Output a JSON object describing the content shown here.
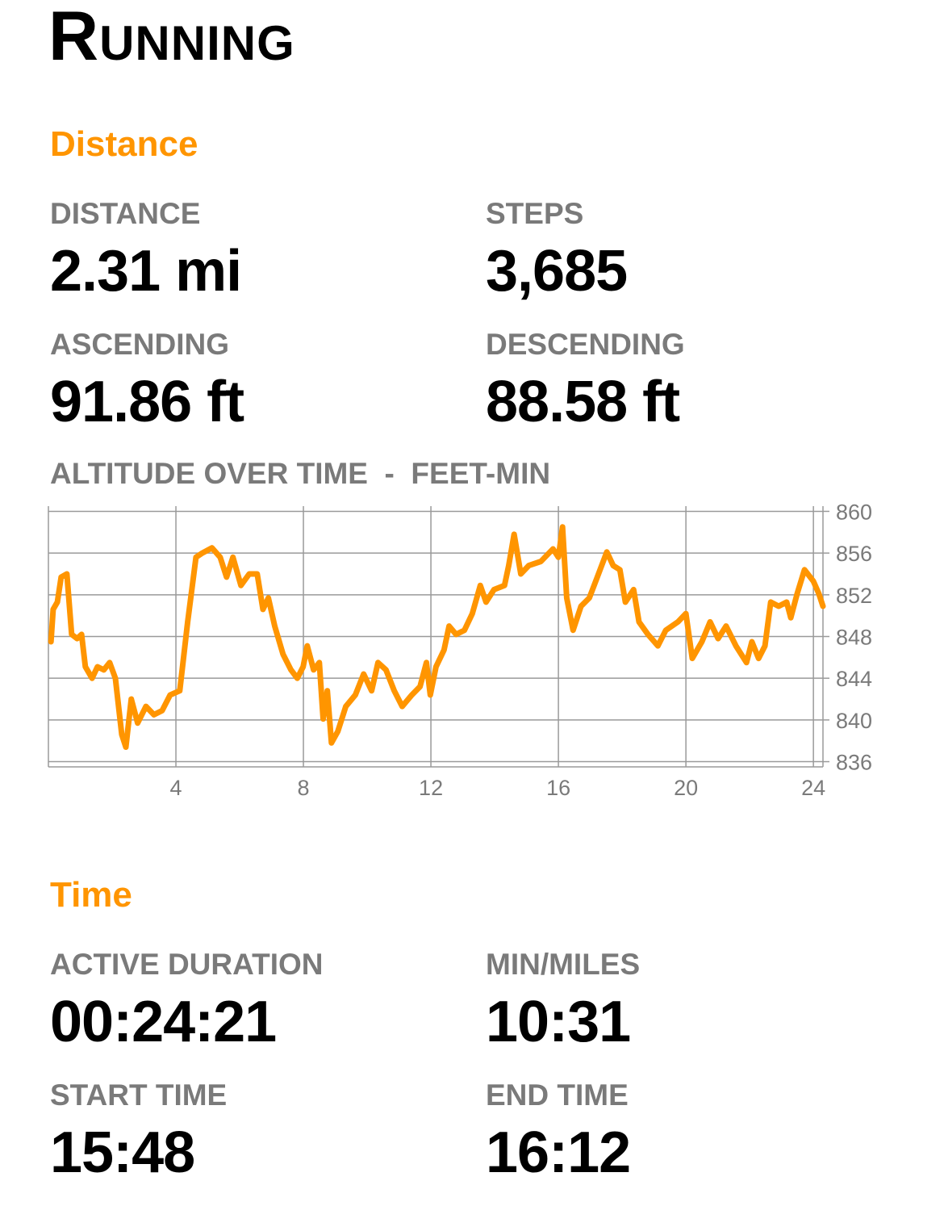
{
  "header": {
    "title": "Running"
  },
  "sections": [
    {
      "heading": "Distance",
      "stats": [
        {
          "label": "DISTANCE",
          "value": "2.31 mi"
        },
        {
          "label": "STEPS",
          "value": "3,685"
        },
        {
          "label": "ASCENDING",
          "value": "91.86 ft"
        },
        {
          "label": "DESCENDING",
          "value": "88.58 ft"
        }
      ]
    },
    {
      "heading": "Time",
      "stats": [
        {
          "label": "ACTIVE DURATION",
          "value": "00:24:21"
        },
        {
          "label": "MIN/MILES",
          "value": "10:31"
        },
        {
          "label": "START TIME",
          "value": "15:48"
        },
        {
          "label": "END TIME",
          "value": "16:12"
        }
      ]
    }
  ],
  "chart_data": {
    "type": "line",
    "title": "ALTITUDE OVER TIME  -  FEET-MIN",
    "x": [
      0.08,
      0.15,
      0.28,
      0.4,
      0.58,
      0.73,
      0.9,
      1.04,
      1.16,
      1.37,
      1.54,
      1.74,
      1.92,
      2.1,
      2.3,
      2.43,
      2.6,
      2.8,
      3.06,
      3.31,
      3.57,
      3.82,
      4.12,
      4.37,
      4.63,
      4.83,
      5.13,
      5.39,
      5.59,
      5.79,
      6.04,
      6.3,
      6.55,
      6.73,
      6.9,
      7.1,
      7.36,
      7.61,
      7.81,
      7.99,
      8.12,
      8.32,
      8.5,
      8.62,
      8.75,
      8.88,
      9.08,
      9.33,
      9.63,
      9.89,
      10.14,
      10.34,
      10.59,
      10.85,
      11.1,
      11.4,
      11.66,
      11.86,
      11.98,
      12.16,
      12.41,
      12.57,
      12.79,
      13.05,
      13.3,
      13.55,
      13.73,
      13.98,
      14.31,
      14.44,
      14.61,
      14.82,
      15.07,
      15.45,
      15.83,
      16.0,
      16.13,
      16.26,
      16.46,
      16.71,
      16.97,
      17.22,
      17.52,
      17.72,
      17.93,
      18.1,
      18.36,
      18.53,
      18.81,
      19.12,
      19.37,
      19.75,
      20.0,
      20.2,
      20.5,
      20.76,
      21.01,
      21.26,
      21.57,
      21.9,
      22.07,
      22.28,
      22.48,
      22.66,
      22.91,
      23.16,
      23.29,
      23.49,
      23.72,
      24.0,
      24.17,
      24.3
    ],
    "series": [
      {
        "color": "#FF9500",
        "values": [
          847.5,
          850.6,
          851.3,
          853.7,
          854.0,
          848.2,
          847.8,
          848.2,
          845.1,
          844.0,
          845.1,
          844.8,
          845.5,
          844.0,
          838.6,
          837.4,
          842.0,
          839.7,
          841.3,
          840.5,
          840.9,
          842.4,
          842.8,
          849.4,
          855.6,
          856.0,
          856.5,
          855.6,
          853.7,
          855.6,
          852.9,
          854.0,
          854.0,
          850.6,
          851.7,
          849.0,
          846.3,
          844.8,
          844.0,
          845.1,
          847.1,
          844.8,
          845.5,
          840.1,
          842.8,
          837.8,
          838.9,
          841.3,
          842.4,
          844.4,
          842.8,
          845.5,
          844.8,
          842.8,
          841.3,
          842.4,
          843.2,
          845.5,
          842.4,
          845.1,
          846.7,
          849.0,
          848.2,
          848.6,
          850.2,
          852.9,
          851.3,
          852.5,
          852.9,
          854.8,
          857.8,
          854.0,
          854.8,
          855.2,
          856.4,
          855.6,
          858.5,
          851.7,
          848.6,
          850.9,
          851.7,
          853.7,
          856.1,
          854.8,
          854.4,
          851.3,
          852.5,
          849.4,
          848.2,
          847.1,
          848.6,
          849.4,
          850.2,
          845.9,
          847.5,
          849.4,
          847.8,
          849.0,
          847.1,
          845.5,
          847.5,
          845.9,
          847.1,
          851.3,
          850.9,
          851.3,
          849.8,
          852.1,
          854.4,
          853.3,
          852.1,
          850.9
        ]
      }
    ],
    "xlim": [
      0,
      24.3
    ],
    "ylim": [
      835.5,
      860.5
    ],
    "xticks": [
      4,
      8,
      12,
      16,
      20,
      24
    ],
    "yticks": [
      836,
      840,
      844,
      848,
      852,
      856,
      860
    ],
    "grid": true
  }
}
